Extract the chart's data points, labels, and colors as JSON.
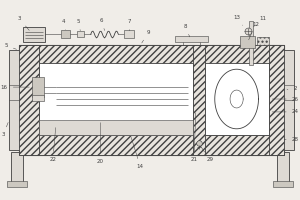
{
  "bg_color": "#f0ede8",
  "line_color": "#404040",
  "fc_hatch": "#e8e4de",
  "fc_light": "#f5f2ee",
  "fc_mid": "#dedad4",
  "fc_dark": "#ccc8c0",
  "figsize": [
    3.0,
    2.0
  ],
  "dpi": 100,
  "xlim": [
    0,
    300
  ],
  "ylim": [
    0,
    200
  ]
}
